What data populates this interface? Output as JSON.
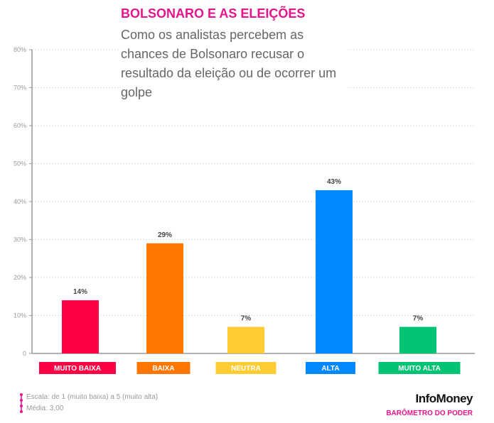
{
  "chart_data": {
    "type": "bar",
    "title": "BOLSONARO E AS ELEIÇÕES",
    "subtitle": "Como os analistas percebem as chances de Bolsonaro recusar o resultado da eleição ou de ocorrer um golpe",
    "categories": [
      "MUITO BAIXA",
      "BAIXA",
      "NEUTRA",
      "ALTA",
      "MUITO ALTA"
    ],
    "values": [
      14,
      29,
      7,
      43,
      7
    ],
    "data_labels": [
      "14%",
      "29%",
      "7%",
      "43%",
      "7%"
    ],
    "colors": [
      "#ff0044",
      "#ff7700",
      "#ffcc33",
      "#0088ff",
      "#00c473"
    ],
    "ylim": [
      0,
      80
    ],
    "yticks": [
      0,
      10,
      20,
      30,
      40,
      50,
      60,
      70,
      80
    ],
    "ytick_labels": [
      "0",
      "10%",
      "20%",
      "30%",
      "40%",
      "50%",
      "60%",
      "70%",
      "80%"
    ],
    "grid": true
  },
  "footer": {
    "scale": "Escala: de 1 (muito baixa) a 5 (muito alta)",
    "mean": "Média: 3,00",
    "brand": "InfoMoney",
    "brand_sub": "BARÔMETRO DO PODER"
  }
}
